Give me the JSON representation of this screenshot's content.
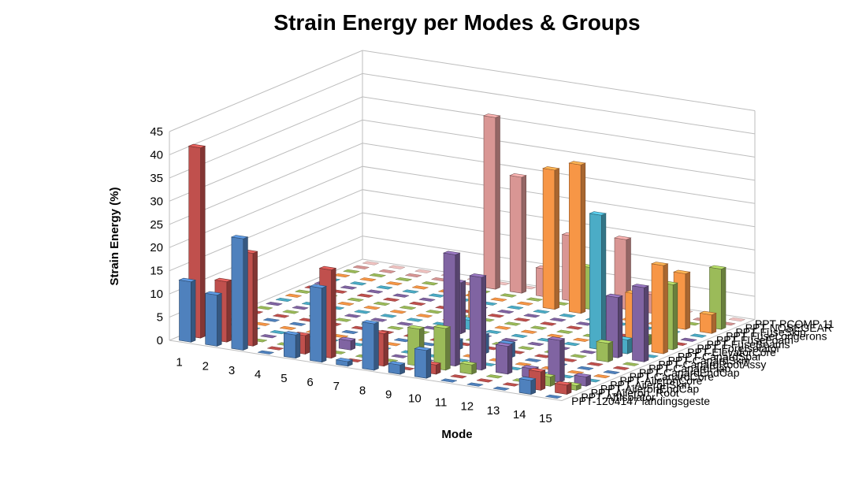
{
  "chart_data": {
    "type": "bar",
    "subtype": "3d-column",
    "title": "Strain Energy per Modes & Groups",
    "xlabel": "Mode",
    "ylabel": "Strain Energy (%)",
    "ylim": [
      0,
      45
    ],
    "yticks": [
      "0",
      "5",
      "10",
      "15",
      "20",
      "25",
      "30",
      "35",
      "40",
      "45"
    ],
    "grid": true,
    "categories": [
      "1",
      "2",
      "3",
      "4",
      "5",
      "6",
      "7",
      "8",
      "9",
      "10",
      "11",
      "12",
      "13",
      "14",
      "15"
    ],
    "series": [
      {
        "name": "PPT-1204147 landingsgeste",
        "color": "#4f81bd",
        "values": [
          13,
          11,
          24,
          0,
          5,
          16,
          1,
          10,
          2,
          6,
          0,
          0,
          0,
          3,
          0
        ]
      },
      {
        "name": "PPT-AftIsolator",
        "color": "#c0504d",
        "values": [
          41,
          13,
          20,
          0,
          4,
          19,
          0,
          7,
          0,
          2,
          0,
          0,
          0,
          4,
          2
        ]
      },
      {
        "name": "PPT-Aileron_Root",
        "color": "#9bbb59",
        "values": [
          0,
          0,
          0,
          0,
          0,
          0,
          0,
          0,
          8,
          9,
          2,
          0,
          0,
          2,
          1
        ]
      },
      {
        "name": "PPT-AileronEndCap",
        "color": "#8064a2",
        "values": [
          0,
          0,
          0,
          0,
          0,
          2,
          0,
          0,
          0,
          24,
          20,
          6,
          2,
          9,
          2
        ]
      },
      {
        "name": "PPT-AileronSkin",
        "color": "#4bacc6",
        "values": [
          0,
          0,
          0,
          0,
          0,
          0,
          0,
          0,
          0,
          0,
          0,
          0,
          0,
          0,
          0
        ]
      },
      {
        "name": "PPT-AileronCore",
        "color": "#f79646",
        "values": [
          0,
          0,
          0,
          0,
          0,
          0,
          0,
          0,
          0,
          0,
          0,
          0,
          0,
          0,
          0
        ]
      },
      {
        "name": "PPT-CanardCore",
        "color": "#4f81bd",
        "values": [
          0,
          0,
          0,
          0,
          0,
          0,
          0,
          0,
          2,
          4,
          3,
          0,
          0,
          0,
          0
        ]
      },
      {
        "name": "PPT-CanardEndCap",
        "color": "#c0504d",
        "values": [
          0,
          0,
          0,
          0,
          0,
          0,
          0,
          0,
          0,
          0,
          0,
          0,
          0,
          0,
          0
        ]
      },
      {
        "name": "PPT-CanardFlap",
        "color": "#9bbb59",
        "values": [
          0,
          0,
          0,
          0,
          0,
          0,
          0,
          0,
          0,
          0,
          0,
          0,
          0,
          4,
          0
        ]
      },
      {
        "name": "PPT-CanardRootAssy",
        "color": "#8064a2",
        "values": [
          0,
          0,
          0,
          0,
          0,
          0,
          0,
          11,
          0,
          0,
          0,
          0,
          0,
          13,
          16
        ]
      },
      {
        "name": "PPT-CanardSkin",
        "color": "#4bacc6",
        "values": [
          0,
          0,
          0,
          0,
          0,
          0,
          0,
          2,
          0,
          0,
          0,
          0,
          29,
          3,
          0
        ]
      },
      {
        "name": "PPT-CanardSpar",
        "color": "#f79646",
        "values": [
          0,
          0,
          0,
          0,
          0,
          0,
          0,
          7,
          0,
          0,
          0,
          0,
          0,
          12,
          19
        ]
      },
      {
        "name": "PPT-ElevatorCore",
        "color": "#9bbb59",
        "values": [
          0,
          0,
          0,
          0,
          0,
          0,
          0,
          0,
          0,
          0,
          0,
          0,
          0,
          2,
          14
        ]
      },
      {
        "name": "PPT-ForeIsolator",
        "color": "#c0504d",
        "values": [
          0,
          0,
          0,
          0,
          0,
          0,
          0,
          0,
          0,
          0,
          0,
          0,
          0,
          0,
          0
        ]
      },
      {
        "name": "PPT-FuseBeams",
        "color": "#8064a2",
        "values": [
          0,
          0,
          0,
          0,
          0,
          0,
          0,
          0,
          0,
          0,
          0,
          0,
          0,
          0,
          0
        ]
      },
      {
        "name": "PPT-FuseFoam",
        "color": "#4bacc6",
        "values": [
          0,
          0,
          0,
          0,
          0,
          0,
          0,
          0,
          0,
          0,
          0,
          0,
          0,
          0,
          0
        ]
      },
      {
        "name": "PPT-FuseLongerons",
        "color": "#f79646",
        "values": [
          0,
          0,
          0,
          0,
          0,
          0,
          0,
          0,
          30,
          32,
          0,
          0,
          0,
          12,
          4
        ]
      },
      {
        "name": "PPT-FuseSkin",
        "color": "#9bbb59",
        "values": [
          0,
          0,
          0,
          0,
          0,
          0,
          0,
          0,
          0,
          9,
          0,
          0,
          0,
          0,
          13
        ]
      },
      {
        "name": "PPT-NOSEGEAR",
        "color": "#d99694",
        "values": [
          0,
          0,
          0,
          0,
          0,
          37,
          25,
          6,
          14,
          0,
          15,
          4,
          4,
          0,
          0
        ]
      },
      {
        "name": "PPT-PCOMP 11",
        "color": "#f2c4c2",
        "values": [
          0,
          0,
          0,
          0,
          0,
          0,
          0,
          0,
          2,
          0,
          2,
          0,
          0,
          0,
          0
        ]
      }
    ],
    "series_labels_printed": [
      "PPT-PCOMP 11",
      "PPT-NOSEGEAR",
      "PPT-FuseSkin",
      "PPT-FuseLongerons",
      "PPT-FuseFoam",
      "PPT-FuseBeams",
      "PPT-ForeIsolator",
      "PPT-ElevatorCore",
      "PPT-CanardSpar",
      "PPT-CanardSkin",
      "PPT-CanardRootAssy",
      "PPT-CanardFlap",
      "PPT-CanardEndCap",
      "PPT-CanardCore",
      "PPT-AileronCore",
      "PPT-AileronSkin",
      "PPT-AileronEndCap",
      "PPT-Aileron_Root",
      "PPT-AftIsolator",
      "PPT-1204147 landingsgeste"
    ]
  }
}
